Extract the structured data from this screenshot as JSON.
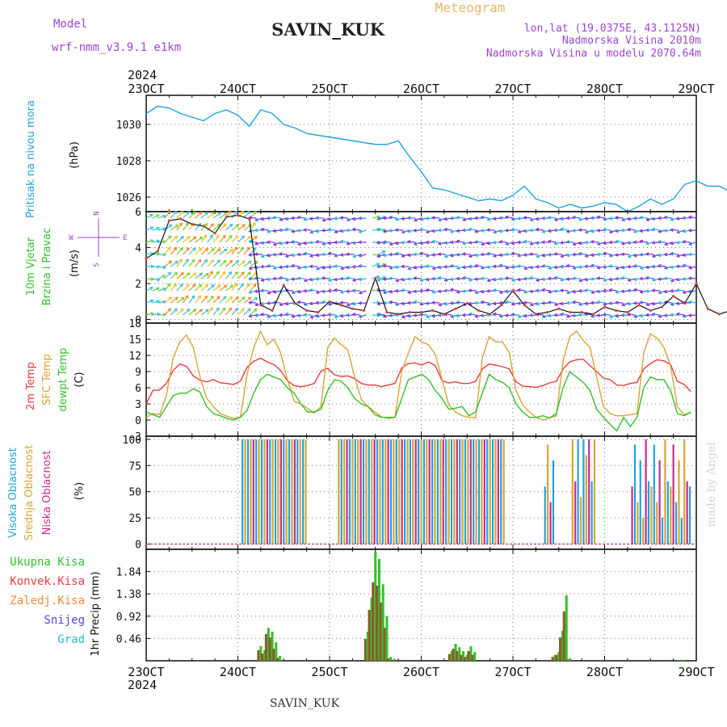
{
  "header": {
    "model_label": "Model",
    "model_name": "wrf-nmm_v3.9.1 e1km",
    "station": "SAVIN_KUK",
    "product": "Meteogram",
    "lonlat": "lon,lat (19.0375E, 43.1125N)",
    "elevation": "Nadmorska Visina 2010m",
    "model_elevation": "Nadmorska Visina u modelu 2070.64m"
  },
  "footer": {
    "station": "SAVIN_KUK",
    "credit": "made by Angel"
  },
  "time_axis": {
    "year_label": "2024",
    "tick_labels": [
      "23OCT",
      "24OCT",
      "25OCT",
      "26OCT",
      "27OCT",
      "28OCT",
      "29OCT"
    ]
  },
  "colors": {
    "pressure": "#1fa3e0",
    "temp2m": "#e83c3c",
    "sfc_temp": "#d9a435",
    "dewpoint": "#33c02a",
    "cloud_high": "#1fa3e0",
    "cloud_mid": "#d9a435",
    "cloud_low": "#c42d8c",
    "precip_total": "#33c02a",
    "precip_conv": "#e83c3c",
    "wind_label": "#33c02a"
  },
  "chart_data": [
    {
      "type": "line",
      "name": "pressure",
      "ylabel": "Pritisak na nivou mora",
      "unit": "(hPa)",
      "ylim": [
        1025.2,
        1031.6
      ],
      "yticks": [
        1026,
        1028,
        1030
      ],
      "grid": true,
      "x_start": "2024-10-23T00",
      "x_step_hours": 3,
      "series": [
        {
          "values": [
            1030.6,
            1031.0,
            1030.9,
            1030.6,
            1030.4,
            1030.2,
            1030.6,
            1030.8,
            1030.5,
            1029.9,
            1030.8,
            1030.6,
            1030.0,
            1029.8,
            1029.5,
            1029.4,
            1029.3,
            1029.2,
            1029.1,
            1029.0,
            1028.9,
            1028.9,
            1029.1,
            1028.2,
            1027.4,
            1026.5,
            1026.4,
            1026.2,
            1026.0,
            1025.8,
            1025.9,
            1025.8,
            1026.1,
            1026.6,
            1025.9,
            1025.7,
            1025.4,
            1025.6,
            1025.4,
            1025.5,
            1025.7,
            1025.6,
            1025.2,
            1025.5,
            1025.9,
            1025.6,
            1025.9,
            1026.7,
            1026.9,
            1026.6,
            1026.6,
            1026.3,
            1026.9,
            1027.2,
            1026.8,
            1026.5,
            1026.4,
            1026.6,
            1026.2,
            1026.4,
            1026.6,
            1026.3,
            1026.4,
            1026.6,
            1027.3,
            1028.0,
            1028.4,
            1028.2,
            1028.3,
            1028.0,
            1027.7,
            1027.3,
            1026.8,
            1027.3,
            1027.1,
            1025.9,
            1026.1,
            1026.3,
            1026.6,
            1026.4,
            1026.5,
            1026.2
          ]
        }
      ]
    },
    {
      "type": "line",
      "name": "wind",
      "ylabel": [
        "10m Vjetar",
        "Brzina i Pravac"
      ],
      "unit": "(m/s)",
      "ylim": [
        -0.2,
        6.0
      ],
      "yticks": [
        0,
        2,
        4,
        6
      ],
      "grid": true,
      "direction_legend": [
        "N",
        "W",
        "E",
        "S"
      ],
      "series": [
        {
          "values": [
            3.4,
            3.8,
            5.5,
            5.6,
            5.3,
            5.2,
            4.8,
            5.7,
            5.8,
            5.6,
            0.8,
            0.5,
            1.9,
            0.9,
            0.5,
            0.4,
            1.0,
            0.8,
            0.6,
            0.5,
            2.3,
            0.4,
            0.3,
            0.4,
            0.4,
            0.5,
            0.3,
            0.6,
            0.9,
            0.5,
            0.3,
            0.8,
            1.6,
            0.8,
            0.3,
            0.4,
            0.6,
            0.4,
            0.4,
            0.3,
            0.7,
            0.5,
            0.4,
            0.8,
            0.5,
            0.7,
            1.3,
            0.9,
            2.0,
            0.6,
            0.3,
            0.5,
            0.4,
            0.3,
            0.4,
            0.5,
            0.3,
            0.4,
            0.9,
            0.4,
            1.2,
            0.8,
            0.5,
            1.0,
            1.2,
            0.8,
            0.6,
            0.9,
            1.0,
            0.7,
            0.5,
            0.4,
            0.7,
            0.9,
            1.6,
            2.8,
            3.6,
            4.1,
            3.5,
            3.2,
            2.9,
            2.7
          ]
        }
      ]
    },
    {
      "type": "line",
      "name": "temperature",
      "ylabel": [
        "2m Temp",
        "SFC Temp",
        "dewpt Temp"
      ],
      "unit": "(C)",
      "ylim": [
        -3,
        18
      ],
      "yticks": [
        -3,
        0,
        3,
        6,
        9,
        12,
        15,
        18
      ],
      "grid": true,
      "series": [
        {
          "name": "2m Temp",
          "values": [
            3.0,
            5.5,
            5.6,
            6.8,
            9.2,
            10.4,
            10.0,
            8.2,
            7.4,
            7.1,
            7.5,
            6.9,
            6.8,
            6.6,
            7.2,
            9.8,
            10.9,
            11.5,
            10.8,
            10.3,
            9.2,
            7.3,
            6.4,
            6.2,
            6.4,
            6.8,
            9.1,
            9.6,
            8.4,
            8.1,
            8.2,
            7.7,
            6.8,
            6.5,
            6.5,
            6.2,
            6.5,
            6.8,
            9.7,
            10.5,
            10.6,
            10.2,
            10.8,
            10.1,
            7.3,
            6.9,
            7.1,
            6.8,
            6.8,
            7.2,
            9.5,
            10.4,
            10.2,
            9.9,
            9.5,
            7.1,
            6.3,
            6.2,
            6.1,
            6.4,
            6.9,
            7.2,
            9.5,
            10.8,
            11.2,
            11.3,
            10.1,
            9.0,
            7.8,
            7.5,
            6.5,
            6.4,
            6.8,
            7.0,
            9.5,
            10.5,
            11.2,
            11.0,
            10.3,
            7.2,
            6.6,
            5.3
          ]
        },
        {
          "name": "SFC Temp",
          "values": [
            0.5,
            1.2,
            1.0,
            4.5,
            11.5,
            14.5,
            15.8,
            13.5,
            8.0,
            4.0,
            2.5,
            1.2,
            0.7,
            0.3,
            0.5,
            8.5,
            13.5,
            16.5,
            14.0,
            15.0,
            12.5,
            7.5,
            3.5,
            3.0,
            2.2,
            1.3,
            2.5,
            13.5,
            15.2,
            14.0,
            13.0,
            8.0,
            3.8,
            2.5,
            1.5,
            0.6,
            0.3,
            0.5,
            9.0,
            12.5,
            15.5,
            14.5,
            14.0,
            12.2,
            7.5,
            2.8,
            1.5,
            0.8,
            0.5,
            0.4,
            11.5,
            15.5,
            14.5,
            14.5,
            12.5,
            5.5,
            2.8,
            1.5,
            0.5,
            0.0,
            0.4,
            0.8,
            11.0,
            15.5,
            16.5,
            14.8,
            13.5,
            8.0,
            2.5,
            1.2,
            0.8,
            0.8,
            1.0,
            1.2,
            12.5,
            16.0,
            15.2,
            13.5,
            10.0,
            2.5,
            1.0,
            1.4
          ]
        },
        {
          "name": "dewpt Temp",
          "values": [
            1.5,
            1.0,
            0.5,
            2.5,
            4.5,
            5.0,
            5.0,
            5.8,
            5.2,
            2.5,
            1.2,
            0.8,
            0.3,
            0.0,
            0.5,
            1.8,
            5.0,
            7.5,
            8.5,
            8.0,
            7.5,
            6.0,
            5.0,
            3.0,
            1.5,
            1.5,
            2.0,
            5.5,
            7.5,
            7.2,
            6.0,
            4.0,
            3.0,
            2.5,
            1.0,
            0.5,
            0.5,
            0.5,
            4.0,
            7.5,
            8.0,
            8.5,
            7.5,
            5.5,
            4.0,
            2.0,
            2.2,
            2.5,
            0.8,
            1.5,
            5.0,
            8.5,
            7.5,
            7.0,
            6.0,
            3.0,
            1.5,
            0.5,
            0.5,
            0.8,
            0.4,
            1.2,
            6.0,
            9.0,
            8.0,
            7.0,
            5.5,
            2.0,
            0.5,
            -0.8,
            -2.0,
            0.5,
            -1.2,
            0.5,
            6.0,
            8.0,
            7.5,
            7.5,
            5.5,
            1.2,
            0.8,
            1.5
          ]
        }
      ]
    },
    {
      "type": "bar",
      "name": "cloud",
      "ylabel": [
        "Visoka Oblacnost",
        "Srednja Oblacnost",
        "Niska Oblacnost"
      ],
      "unit": "(%)",
      "ylim": [
        -5,
        103
      ],
      "yticks": [
        0,
        25,
        50,
        75,
        100
      ],
      "grid": true,
      "series": [
        {
          "name": "Visoka Oblacnost",
          "values": [
            0,
            0,
            0,
            0,
            0,
            0,
            0,
            0,
            0,
            0,
            0,
            0,
            0,
            0,
            0,
            0,
            0,
            0,
            0,
            0,
            0,
            0,
            0,
            0,
            0,
            0,
            0,
            0,
            0,
            0,
            0,
            0,
            0,
            0,
            0,
            0,
            0,
            0,
            0,
            0,
            0,
            0,
            0,
            0,
            0,
            0,
            0,
            0,
            0,
            0,
            0,
            0,
            0,
            0,
            0,
            0,
            0,
            0,
            0,
            0,
            0,
            0,
            0,
            0,
            0,
            0,
            0,
            0,
            0,
            0,
            0,
            0,
            0,
            0,
            0,
            0,
            0,
            0,
            0,
            0,
            0,
            0
          ]
        },
        {
          "name": "Srednja Oblacnost",
          "values": [
            0,
            0,
            0,
            0,
            0,
            0,
            0,
            0,
            0,
            0,
            0,
            0,
            0,
            0,
            0,
            0,
            0,
            0,
            0,
            0,
            0,
            0,
            0,
            0,
            0,
            0,
            0,
            0,
            0,
            0,
            0,
            0,
            0,
            0,
            0,
            0,
            0,
            0,
            0,
            0,
            0,
            0,
            0,
            0,
            0,
            0,
            0,
            0,
            0,
            0,
            0,
            0,
            0,
            0,
            0,
            0,
            0,
            0,
            0,
            0,
            0,
            0,
            0,
            0,
            0,
            0,
            0,
            0,
            0,
            0,
            0,
            0,
            0,
            0,
            0,
            0,
            0,
            0,
            0,
            0,
            0,
            0
          ]
        },
        {
          "name": "Niska Oblacnost",
          "values": [
            0,
            0,
            0,
            0,
            0,
            0,
            0,
            0,
            0,
            0,
            0,
            0,
            0,
            0,
            0,
            0,
            0,
            0,
            0,
            0,
            0,
            0,
            0,
            0,
            0,
            0,
            0,
            0,
            0,
            0,
            0,
            0,
            0,
            0,
            0,
            0,
            0,
            0,
            0,
            0,
            0,
            0,
            0,
            0,
            0,
            0,
            0,
            0,
            0,
            0,
            0,
            0,
            0,
            0,
            0,
            0,
            0,
            0,
            0,
            0,
            0,
            0,
            0,
            0,
            0,
            0,
            0,
            0,
            0,
            0,
            0,
            0,
            0,
            0,
            0,
            0,
            0,
            0,
            0,
            0,
            0,
            0
          ]
        }
      ],
      "hourly": {
        "x_start": "2024-10-23T00",
        "x_step_hours": 1,
        "high": {
          "24": [
            [
              0,
              88,
              100
            ]
          ],
          "25": [
            [
              8,
              45,
              100
            ]
          ],
          "27": [
            [
              18,
              65,
              100
            ],
            [
              20,
              65,
              100
            ]
          ]
        },
        "cloud_hours": [
          [
            24.05,
            24.75,
            "full"
          ],
          [
            25.1,
            26.9,
            "full"
          ],
          [
            27.35,
            27.45,
            "sparse"
          ],
          [
            27.65,
            27.9,
            "mix"
          ],
          [
            28.3,
            28.95,
            "sparse"
          ]
        ]
      }
    },
    {
      "type": "bar",
      "name": "precip",
      "ylabel": "1hr Precip",
      "unit": "(mm)",
      "ylim": [
        0,
        2.3
      ],
      "yticks": [
        0.46,
        0.92,
        1.38,
        1.84
      ],
      "grid": true,
      "legend": [
        "Ukupna Kisa",
        "Konvek.Kisa",
        "Zaledj.Kisa",
        "Snijeg",
        "Grad"
      ],
      "series": [
        {
          "name": "Ukupna Kisa",
          "x": [
            "2024-10-24T06",
            "2024-10-24T07",
            "2024-10-24T08",
            "2024-10-24T09",
            "2024-10-24T10",
            "2024-10-24T11",
            "2024-10-25T10",
            "2024-10-25T11",
            "2024-10-25T12",
            "2024-10-25T13",
            "2024-10-25T14",
            "2024-10-25T15",
            "2024-10-25T16",
            "2024-10-25T17",
            "2024-10-26T08",
            "2024-10-26T09",
            "2024-10-26T10",
            "2024-10-26T11",
            "2024-10-26T12",
            "2024-10-26T13",
            "2024-10-26T14",
            "2024-10-27T11",
            "2024-10-27T12",
            "2024-10-27T13",
            "2024-10-27T14",
            "2024-10-27T15",
            "2024-10-28T20",
            "2024-10-28T21"
          ],
          "values": [
            0.3,
            0.22,
            0.68,
            0.6,
            0.38,
            0.1,
            0.6,
            1.3,
            2.25,
            2.1,
            1.58,
            0.92,
            0.08,
            0.04,
            0.2,
            0.35,
            0.28,
            0.2,
            0.12,
            0.3,
            0.18,
            0.12,
            0.18,
            0.62,
            1.35,
            0.05,
            0.02,
            0.02
          ]
        },
        {
          "name": "Konvek.Kisa",
          "x": [
            "2024-10-24T06",
            "2024-10-24T07",
            "2024-10-24T08",
            "2024-10-24T09",
            "2024-10-24T10",
            "2024-10-24T11",
            "2024-10-25T10",
            "2024-10-25T11",
            "2024-10-25T12",
            "2024-10-25T13",
            "2024-10-25T14",
            "2024-10-25T15",
            "2024-10-25T16",
            "2024-10-25T17",
            "2024-10-26T08",
            "2024-10-26T09",
            "2024-10-26T10",
            "2024-10-26T11",
            "2024-10-26T12",
            "2024-10-26T13",
            "2024-10-26T14",
            "2024-10-27T11",
            "2024-10-27T12",
            "2024-10-27T13",
            "2024-10-27T14",
            "2024-10-27T15",
            "2024-10-28T20",
            "2024-10-28T21"
          ],
          "values": [
            0.22,
            0.15,
            0.55,
            0.48,
            0.25,
            0.06,
            0.45,
            1.05,
            1.62,
            1.55,
            1.2,
            0.68,
            0.05,
            0.02,
            0.14,
            0.25,
            0.2,
            0.12,
            0.08,
            0.2,
            0.12,
            0.08,
            0.12,
            0.48,
            1.02,
            0.03,
            0.01,
            0.01
          ]
        }
      ]
    }
  ]
}
